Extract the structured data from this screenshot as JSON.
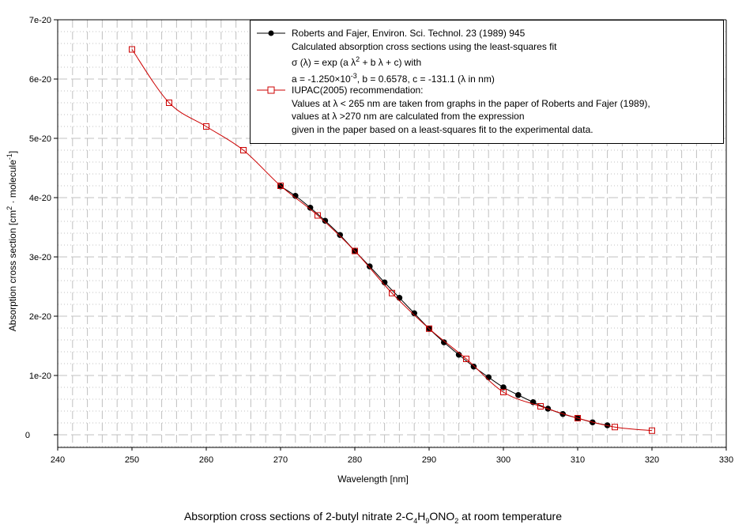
{
  "chart_data": {
    "type": "line",
    "title": "Absorption cross sections of 2-butyl nitrate 2-C4H9ONO2 at room temperature",
    "title_parts": {
      "pre": "Absorption cross sections of 2-butyl nitrate 2-C",
      "s1": "4",
      "m1": "H",
      "s2": "9",
      "m2": "ONO",
      "s3": "2",
      "post": " at room temperature"
    },
    "xlabel": "Wavelength [nm]",
    "ylabel": "Absorption cross section [cm2 · molecule-1]",
    "ylabel_parts": {
      "pre": "Absorption cross section [cm",
      "sup1": "2",
      "mid": " · molecule",
      "sup2": "-1",
      "post": "]"
    },
    "xlim": [
      240,
      330
    ],
    "ylim": [
      0,
      7e-20
    ],
    "x_ticks": [
      240,
      250,
      260,
      270,
      280,
      290,
      300,
      310,
      320,
      330
    ],
    "x_tick_labels": [
      "240",
      "250",
      "260",
      "270",
      "280",
      "290",
      "300",
      "310",
      "320",
      "330"
    ],
    "y_ticks": [
      0,
      1e-20,
      2e-20,
      3e-20,
      4e-20,
      5e-20,
      6e-20,
      7e-20
    ],
    "y_tick_labels": [
      "0",
      "1e-20",
      "2e-20",
      "3e-20",
      "4e-20",
      "5e-20",
      "6e-20",
      "7e-20"
    ],
    "grid": true,
    "legend_position": "top-right",
    "series": [
      {
        "name": "Roberts and Fajer, Environ. Sci. Technol. 23 (1989) 945",
        "color": "#000000",
        "marker": "filled-circle",
        "legend_lines": [
          "Roberts and Fajer, Environ. Sci. Technol. 23 (1989) 945",
          "Calculated absorption cross sections using the least-squares fit"
        ],
        "legend_formula": {
          "pre": "σ (λ) = exp (a λ",
          "sup": "2",
          "post": " + b λ + c) with"
        },
        "legend_params": {
          "pre": "a = -1.250×10",
          "sup": "-3",
          "post": ", b = 0.6578, c = -131.1 (λ in nm)"
        },
        "x": [
          270,
          272,
          274,
          276,
          278,
          280,
          282,
          284,
          286,
          288,
          290,
          292,
          294,
          296,
          298,
          300,
          302,
          304,
          306,
          308,
          310,
          312,
          314
        ],
        "y": [
          4.19e-20,
          4.03e-20,
          3.83e-20,
          3.61e-20,
          3.37e-20,
          3.1e-20,
          2.84e-20,
          2.57e-20,
          2.31e-20,
          2.05e-20,
          1.79e-20,
          1.56e-20,
          1.35e-20,
          1.15e-20,
          9.7e-21,
          8e-21,
          6.7e-21,
          5.5e-21,
          4.4e-21,
          3.5e-21,
          2.8e-21,
          2.1e-21,
          1.6e-21
        ]
      },
      {
        "name": "IUPAC(2005) recommendation:",
        "color": "#cc0000",
        "marker": "open-square",
        "legend_lines": [
          "IUPAC(2005) recommendation:",
          "Values at λ < 265 nm are taken from graphs in the paper of Roberts and Fajer (1989),",
          "values at λ >270 nm are calculated from the expression",
          "given in the paper based on a least-squares fit to the experimental data."
        ],
        "x": [
          250,
          255,
          260,
          265,
          270,
          275,
          280,
          285,
          290,
          295,
          300,
          305,
          310,
          315,
          320
        ],
        "y": [
          6.5e-20,
          5.6e-20,
          5.2e-20,
          4.8e-20,
          4.2e-20,
          3.7e-20,
          3.1e-20,
          2.39e-20,
          1.79e-20,
          1.28e-20,
          7.2e-21,
          4.8e-21,
          2.8e-21,
          1.3e-21,
          7e-22
        ]
      }
    ]
  }
}
